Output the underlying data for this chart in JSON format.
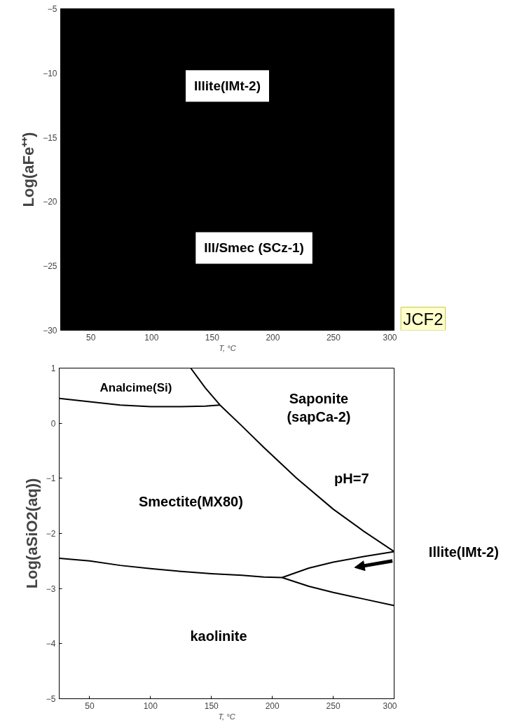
{
  "chart_data": [
    {
      "type": "area",
      "xlabel": "T, °C",
      "ylabel": "Log(aFe⁺⁺)",
      "xlim": [
        25,
        300
      ],
      "ylim": [
        -30,
        -5
      ],
      "xticks": [
        50,
        100,
        150,
        200,
        250,
        300
      ],
      "yticks": [
        -30,
        -25,
        -20,
        -15,
        -10,
        -5
      ],
      "grid": false,
      "bands": [
        {
          "axis": "y",
          "from": -30,
          "to": -5,
          "color": "#000000"
        }
      ],
      "annotations": [
        "Illite(IMt-2)",
        "Ill/Smec (SCz-1)",
        "JCF2"
      ]
    },
    {
      "type": "line",
      "xlabel": "T, °C",
      "ylabel": "Log(aSiO2(aq))",
      "xlim": [
        25,
        300
      ],
      "ylim": [
        -5,
        1
      ],
      "xticks": [
        50,
        100,
        150,
        200,
        250,
        300
      ],
      "yticks": [
        -5,
        -4,
        -3,
        -2,
        -1,
        0,
        1
      ],
      "grid": false,
      "series": [
        {
          "color": "#000000",
          "x": [
            25,
            50,
            75,
            100,
            125,
            145,
            157
          ],
          "values": [
            0.45,
            0.39,
            0.33,
            0.3,
            0.3,
            0.31,
            0.33
          ]
        },
        {
          "color": "#000000",
          "x": [
            133,
            145,
            157,
            175,
            193,
            220,
            250,
            275,
            300
          ],
          "values": [
            1,
            0.64,
            0.33,
            -0.05,
            -0.44,
            -1.0,
            -1.56,
            -1.96,
            -2.33
          ]
        },
        {
          "color": "#000000",
          "x": [
            25,
            50,
            75,
            100,
            125,
            150,
            175,
            193,
            208,
            230,
            250,
            275,
            300
          ],
          "values": [
            -2.45,
            -2.5,
            -2.58,
            -2.64,
            -2.69,
            -2.73,
            -2.76,
            -2.79,
            -2.8,
            -2.96,
            -3.07,
            -3.19,
            -3.31
          ]
        },
        {
          "color": "#000000",
          "x": [
            208,
            230,
            250,
            275,
            300
          ],
          "values": [
            -2.8,
            -2.63,
            -2.52,
            -2.42,
            -2.33
          ]
        }
      ],
      "annotations": [
        "Analcime(Si)",
        "Smectite(MX80)",
        "kaolinite",
        "Saponite\n(sapCa-2)",
        "pH=7",
        "Illite(IMt-2)"
      ]
    }
  ]
}
